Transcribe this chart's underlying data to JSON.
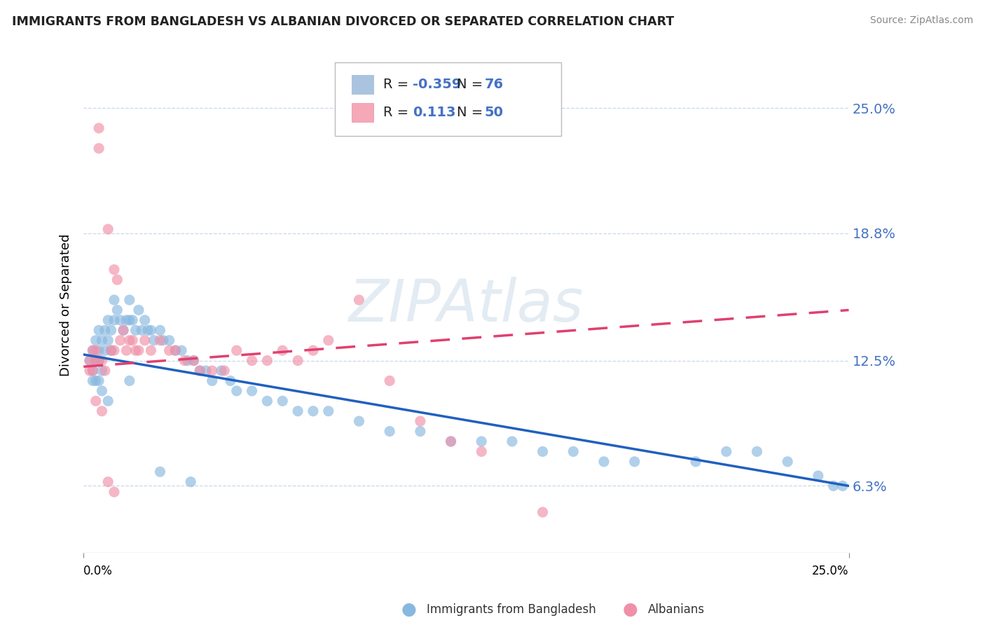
{
  "title": "IMMIGRANTS FROM BANGLADESH VS ALBANIAN DIVORCED OR SEPARATED CORRELATION CHART",
  "source": "Source: ZipAtlas.com",
  "ylabel": "Divorced or Separated",
  "yticks": [
    0.063,
    0.125,
    0.188,
    0.25
  ],
  "ytick_labels": [
    "6.3%",
    "12.5%",
    "18.8%",
    "25.0%"
  ],
  "xlim": [
    0.0,
    0.25
  ],
  "ylim": [
    0.03,
    0.275
  ],
  "legend_entry1_color": "#aac4e0",
  "legend_entry2_color": "#f4a8b8",
  "blue_color": "#88b8e0",
  "pink_color": "#f090a8",
  "trend_blue_color": "#2060c0",
  "trend_pink_color": "#e04070",
  "watermark": "ZIPAtlas",
  "blue_R": "-0.359",
  "blue_N": "76",
  "pink_R": "0.113",
  "pink_N": "50",
  "legend_label1": "Immigrants from Bangladesh",
  "legend_label2": "Albanians",
  "scatter_blue_x": [
    0.002,
    0.003,
    0.003,
    0.004,
    0.004,
    0.004,
    0.005,
    0.005,
    0.005,
    0.005,
    0.006,
    0.006,
    0.007,
    0.007,
    0.008,
    0.008,
    0.009,
    0.009,
    0.01,
    0.01,
    0.011,
    0.012,
    0.013,
    0.014,
    0.015,
    0.015,
    0.016,
    0.017,
    0.018,
    0.019,
    0.02,
    0.021,
    0.022,
    0.023,
    0.025,
    0.026,
    0.028,
    0.03,
    0.032,
    0.034,
    0.036,
    0.038,
    0.04,
    0.042,
    0.045,
    0.048,
    0.05,
    0.055,
    0.06,
    0.065,
    0.07,
    0.075,
    0.08,
    0.09,
    0.1,
    0.11,
    0.12,
    0.13,
    0.14,
    0.15,
    0.16,
    0.17,
    0.18,
    0.2,
    0.21,
    0.22,
    0.23,
    0.24,
    0.245,
    0.248,
    0.003,
    0.006,
    0.008,
    0.015,
    0.025,
    0.035
  ],
  "scatter_blue_y": [
    0.125,
    0.13,
    0.12,
    0.135,
    0.125,
    0.115,
    0.14,
    0.13,
    0.125,
    0.115,
    0.135,
    0.12,
    0.14,
    0.13,
    0.145,
    0.135,
    0.14,
    0.13,
    0.155,
    0.145,
    0.15,
    0.145,
    0.14,
    0.145,
    0.155,
    0.145,
    0.145,
    0.14,
    0.15,
    0.14,
    0.145,
    0.14,
    0.14,
    0.135,
    0.14,
    0.135,
    0.135,
    0.13,
    0.13,
    0.125,
    0.125,
    0.12,
    0.12,
    0.115,
    0.12,
    0.115,
    0.11,
    0.11,
    0.105,
    0.105,
    0.1,
    0.1,
    0.1,
    0.095,
    0.09,
    0.09,
    0.085,
    0.085,
    0.085,
    0.08,
    0.08,
    0.075,
    0.075,
    0.075,
    0.08,
    0.08,
    0.075,
    0.068,
    0.063,
    0.063,
    0.115,
    0.11,
    0.105,
    0.115,
    0.07,
    0.065
  ],
  "scatter_pink_x": [
    0.002,
    0.003,
    0.003,
    0.004,
    0.004,
    0.005,
    0.005,
    0.005,
    0.006,
    0.007,
    0.008,
    0.009,
    0.01,
    0.01,
    0.011,
    0.012,
    0.013,
    0.014,
    0.015,
    0.016,
    0.017,
    0.018,
    0.02,
    0.022,
    0.025,
    0.028,
    0.03,
    0.033,
    0.036,
    0.038,
    0.042,
    0.046,
    0.05,
    0.055,
    0.06,
    0.065,
    0.07,
    0.075,
    0.08,
    0.09,
    0.1,
    0.11,
    0.12,
    0.13,
    0.15,
    0.002,
    0.004,
    0.006,
    0.008,
    0.01
  ],
  "scatter_pink_y": [
    0.125,
    0.13,
    0.12,
    0.13,
    0.125,
    0.24,
    0.23,
    0.125,
    0.125,
    0.12,
    0.19,
    0.13,
    0.17,
    0.13,
    0.165,
    0.135,
    0.14,
    0.13,
    0.135,
    0.135,
    0.13,
    0.13,
    0.135,
    0.13,
    0.135,
    0.13,
    0.13,
    0.125,
    0.125,
    0.12,
    0.12,
    0.12,
    0.13,
    0.125,
    0.125,
    0.13,
    0.125,
    0.13,
    0.135,
    0.155,
    0.115,
    0.095,
    0.085,
    0.08,
    0.05,
    0.12,
    0.105,
    0.1,
    0.065,
    0.06
  ]
}
